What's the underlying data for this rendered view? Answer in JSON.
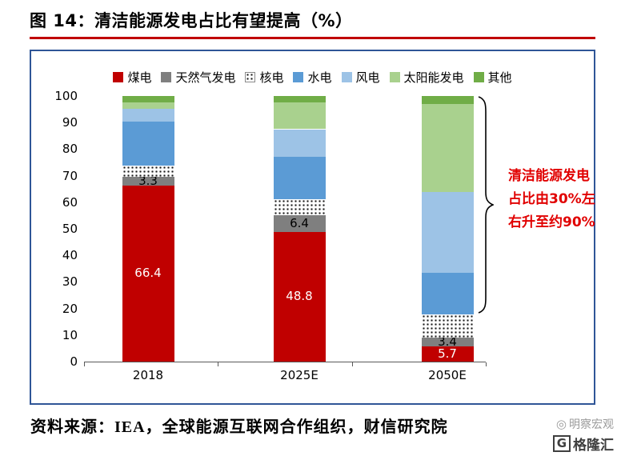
{
  "figure": {
    "title": "图 14：清洁能源发电占比有望提高（%）",
    "accent_red": "#c00000",
    "frame_color": "#2f5597",
    "source": "资料来源：IEA，全球能源互联网合作组织，财信研究院",
    "watermark": {
      "line1": "明察宏观",
      "logo_letter": "G",
      "logo_text": "格隆汇"
    }
  },
  "chart_data": {
    "type": "bar",
    "subtype": "stacked-column",
    "title": "清洁能源发电占比有望提高（%）",
    "xlabel": "",
    "ylabel": "%",
    "categories": [
      "2018",
      "2025E",
      "2050E"
    ],
    "series": [
      {
        "name": "煤电",
        "color": "#c00000",
        "pattern": "solid",
        "values": [
          66.4,
          48.8,
          5.7
        ],
        "labels": [
          "66.4",
          "48.8",
          "5.7"
        ],
        "label_color": "#ffffff"
      },
      {
        "name": "天然气发电",
        "color": "#7f7f7f",
        "pattern": "solid",
        "values": [
          3.3,
          6.4,
          3.4
        ],
        "labels": [
          "3.3",
          "6.4",
          "3.4"
        ],
        "label_color": "#000000"
      },
      {
        "name": "核电",
        "color": "#ffffff",
        "pattern": "dots",
        "values": [
          4.2,
          5.8,
          8.7
        ]
      },
      {
        "name": "水电",
        "color": "#5b9bd5",
        "pattern": "solid",
        "values": [
          16.6,
          16.0,
          15.7
        ]
      },
      {
        "name": "风电",
        "color": "#9dc3e6",
        "pattern": "solid",
        "values": [
          4.7,
          10.5,
          30.5
        ]
      },
      {
        "name": "太阳能发电",
        "color": "#a9d18e",
        "pattern": "solid",
        "values": [
          2.3,
          10.0,
          33.0
        ]
      },
      {
        "name": "其他",
        "color": "#70ad47",
        "pattern": "solid",
        "values": [
          2.5,
          2.5,
          3.0
        ]
      }
    ],
    "ylim": [
      0,
      100
    ],
    "yticks": [
      0,
      10,
      20,
      30,
      40,
      50,
      60,
      70,
      80,
      90,
      100
    ],
    "legend_position": "top",
    "grid": false,
    "annotation": {
      "text": "清洁能源发电占比由30%左右升至约90%",
      "color": "#e10000",
      "brace_range": [
        18,
        100
      ]
    }
  }
}
